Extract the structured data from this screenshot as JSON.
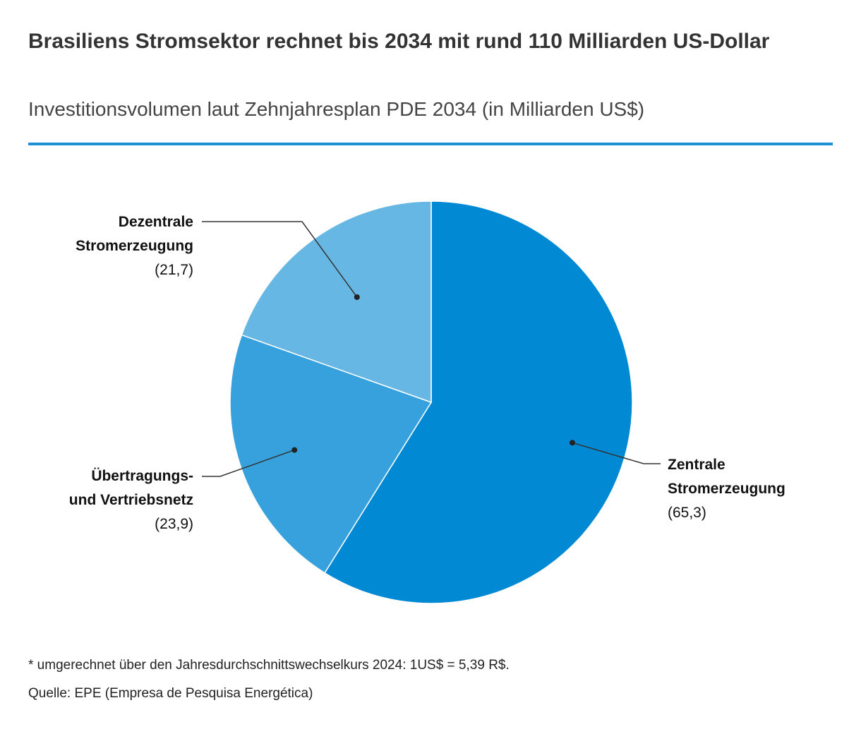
{
  "header": {
    "title": "Brasiliens Stromsektor rechnet bis 2034 mit rund 110 Milliarden US-Dollar",
    "subtitle": "Investitionsvolumen laut Zehnjahresplan PDE 2034 (in Milliarden US$)"
  },
  "chart_data": {
    "type": "pie",
    "title": "Brasiliens Stromsektor rechnet bis 2034 mit rund 110 Milliarden US-Dollar",
    "subtitle": "Investitionsvolumen laut Zehnjahresplan PDE 2034 (in Milliarden US$)",
    "unit": "Milliarden US$",
    "slices": [
      {
        "name_line1": "Zentrale",
        "name_line2": "Stromerzeugung",
        "value": 65.3,
        "value_label": "(65,3)",
        "color": "#0289d3"
      },
      {
        "name_line1": "Übertragungs-",
        "name_line2": "und Vertriebsnetz",
        "value": 23.9,
        "value_label": "(23,9)",
        "color": "#36a1dc"
      },
      {
        "name_line1": "Dezentrale",
        "name_line2": "Stromerzeugung",
        "value": 21.7,
        "value_label": "(21,7)",
        "color": "#66b7e3"
      }
    ]
  },
  "footer": {
    "note": "* umgerechnet über den Jahresdurchschnittswechselkurs 2024: 1US$ = 5,39 R$.",
    "source": "Quelle: EPE (Empresa de Pesquisa Energética)"
  },
  "colors": {
    "accent_rule": "#1f8fd6",
    "leader_line": "#333333"
  }
}
